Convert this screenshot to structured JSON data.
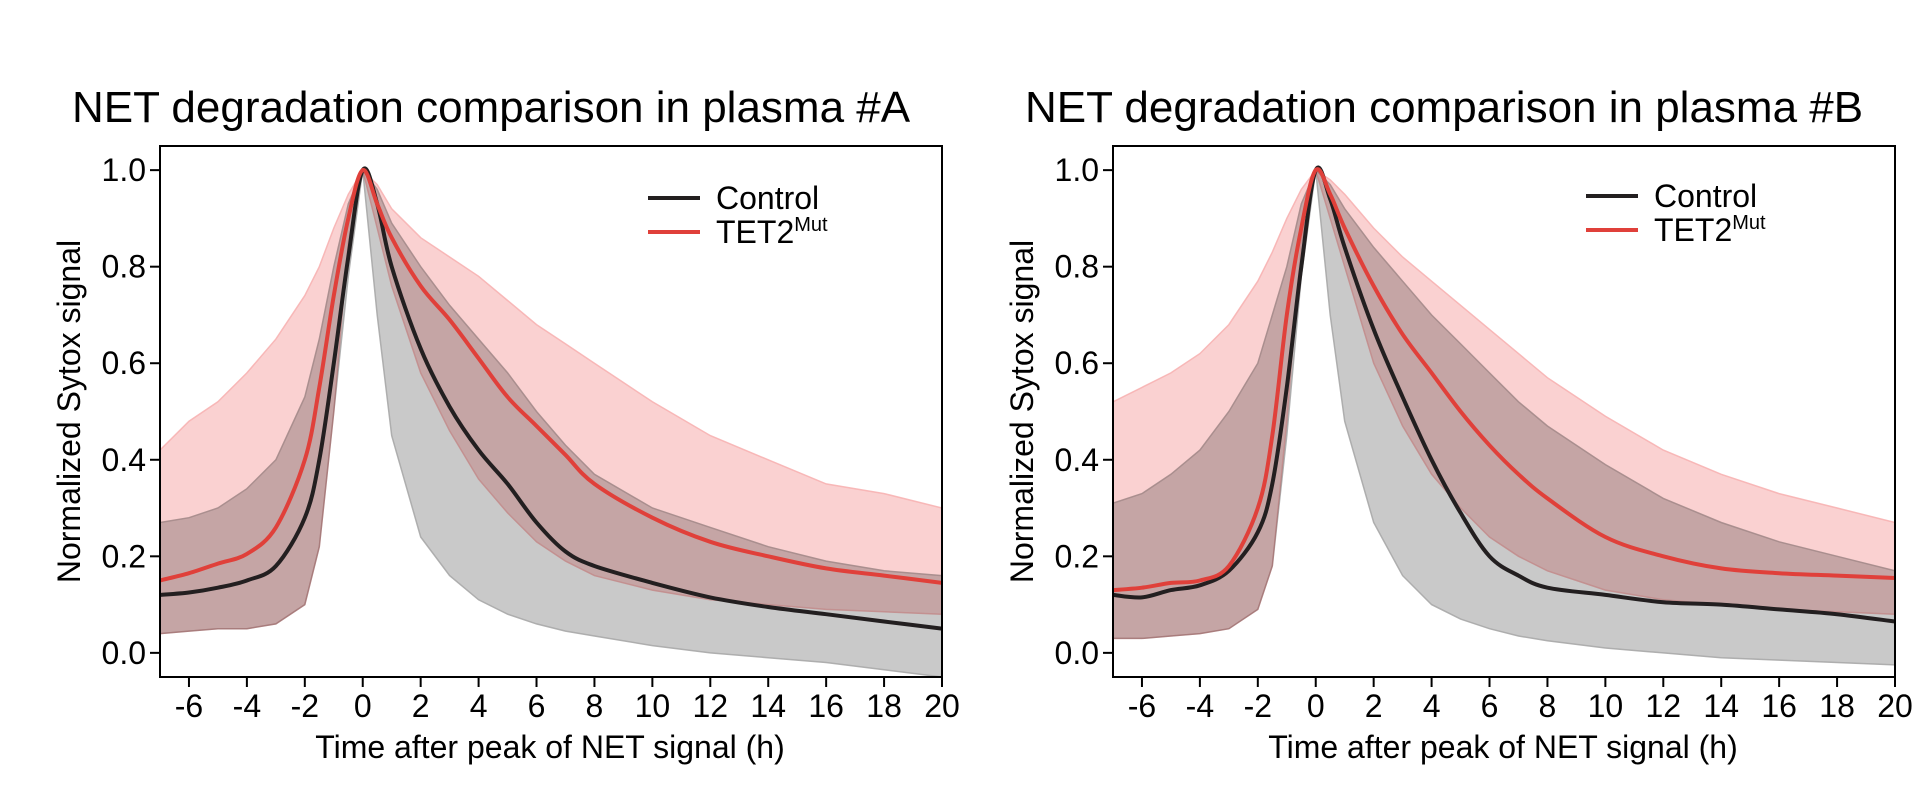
{
  "chart_data": [
    {
      "type": "line",
      "title": "NET degradation comparison in plasma #A",
      "xlabel": "Time after peak of NET signal (h)",
      "ylabel": "Normalized Sytox signal",
      "xlim": [
        -7,
        20
      ],
      "ylim": [
        -0.05,
        1.05
      ],
      "xticks": [
        "-6",
        "-4",
        "-2",
        "0",
        "2",
        "4",
        "6",
        "8",
        "10",
        "12",
        "14",
        "16",
        "18",
        "20"
      ],
      "yticks": [
        "0.0",
        "0.2",
        "0.4",
        "0.6",
        "0.8",
        "1.0"
      ],
      "legend_position": "top-right",
      "x": [
        -7,
        -6,
        -5,
        -4,
        -3,
        -2,
        -1.5,
        -1,
        -0.5,
        0,
        0.5,
        1,
        2,
        3,
        4,
        5,
        6,
        7,
        8,
        10,
        12,
        14,
        16,
        18,
        20
      ],
      "series": [
        {
          "name": "Control",
          "color": "#231f20",
          "band_color": "#a8a8a8",
          "values": [
            0.12,
            0.125,
            0.135,
            0.15,
            0.18,
            0.28,
            0.4,
            0.6,
            0.82,
            1.0,
            0.93,
            0.8,
            0.63,
            0.51,
            0.42,
            0.35,
            0.27,
            0.21,
            0.18,
            0.145,
            0.115,
            0.095,
            0.08,
            0.065,
            0.05
          ],
          "upper": [
            0.27,
            0.28,
            0.3,
            0.34,
            0.4,
            0.53,
            0.65,
            0.8,
            0.93,
            1.0,
            0.96,
            0.89,
            0.8,
            0.72,
            0.65,
            0.58,
            0.5,
            0.43,
            0.37,
            0.3,
            0.26,
            0.22,
            0.19,
            0.17,
            0.16
          ],
          "lower": [
            0.04,
            0.045,
            0.05,
            0.05,
            0.06,
            0.1,
            0.22,
            0.5,
            0.78,
            1.0,
            0.7,
            0.45,
            0.24,
            0.16,
            0.11,
            0.08,
            0.06,
            0.045,
            0.035,
            0.015,
            0.0,
            -0.01,
            -0.02,
            -0.035,
            -0.05
          ]
        },
        {
          "name": "TET2Mut",
          "color": "#e0403a",
          "band_color": "#f7b2b2",
          "values": [
            0.15,
            0.165,
            0.185,
            0.205,
            0.26,
            0.4,
            0.55,
            0.74,
            0.9,
            1.0,
            0.93,
            0.86,
            0.76,
            0.69,
            0.61,
            0.53,
            0.47,
            0.41,
            0.35,
            0.28,
            0.23,
            0.2,
            0.175,
            0.16,
            0.145
          ],
          "upper": [
            0.42,
            0.48,
            0.52,
            0.58,
            0.65,
            0.74,
            0.8,
            0.88,
            0.95,
            1.0,
            0.97,
            0.92,
            0.86,
            0.82,
            0.78,
            0.73,
            0.68,
            0.64,
            0.6,
            0.52,
            0.45,
            0.4,
            0.35,
            0.33,
            0.3
          ],
          "lower": [
            0.04,
            0.045,
            0.05,
            0.05,
            0.06,
            0.1,
            0.22,
            0.5,
            0.85,
            1.0,
            0.88,
            0.76,
            0.58,
            0.46,
            0.36,
            0.29,
            0.23,
            0.19,
            0.16,
            0.13,
            0.11,
            0.1,
            0.09,
            0.085,
            0.08
          ]
        }
      ]
    },
    {
      "type": "line",
      "title": "NET degradation comparison in plasma #B",
      "xlabel": "Time after peak of NET signal (h)",
      "ylabel": "Normalized Sytox signal",
      "xlim": [
        -7,
        20
      ],
      "ylim": [
        -0.05,
        1.05
      ],
      "xticks": [
        "-6",
        "-4",
        "-2",
        "0",
        "2",
        "4",
        "6",
        "8",
        "10",
        "12",
        "14",
        "16",
        "18",
        "20"
      ],
      "yticks": [
        "0.0",
        "0.2",
        "0.4",
        "0.6",
        "0.8",
        "1.0"
      ],
      "legend_position": "top-right",
      "x": [
        -7,
        -6,
        -5,
        -4,
        -3,
        -2,
        -1.5,
        -1,
        -0.5,
        0,
        0.5,
        1,
        2,
        3,
        4,
        5,
        6,
        7,
        8,
        10,
        12,
        14,
        16,
        18,
        20
      ],
      "series": [
        {
          "name": "Control",
          "color": "#231f20",
          "band_color": "#a8a8a8",
          "values": [
            0.12,
            0.115,
            0.13,
            0.14,
            0.17,
            0.25,
            0.35,
            0.55,
            0.8,
            1.0,
            0.94,
            0.84,
            0.67,
            0.53,
            0.4,
            0.29,
            0.2,
            0.16,
            0.135,
            0.12,
            0.105,
            0.1,
            0.09,
            0.08,
            0.065
          ],
          "upper": [
            0.31,
            0.33,
            0.37,
            0.42,
            0.5,
            0.6,
            0.7,
            0.8,
            0.93,
            1.0,
            0.97,
            0.92,
            0.84,
            0.77,
            0.7,
            0.64,
            0.58,
            0.52,
            0.47,
            0.39,
            0.32,
            0.27,
            0.23,
            0.2,
            0.17
          ],
          "lower": [
            0.03,
            0.03,
            0.035,
            0.04,
            0.05,
            0.09,
            0.18,
            0.45,
            0.78,
            1.0,
            0.7,
            0.48,
            0.27,
            0.16,
            0.1,
            0.07,
            0.05,
            0.035,
            0.025,
            0.01,
            0.0,
            -0.01,
            -0.015,
            -0.02,
            -0.025
          ]
        },
        {
          "name": "TET2Mut",
          "color": "#e0403a",
          "band_color": "#f7b2b2",
          "values": [
            0.13,
            0.135,
            0.145,
            0.15,
            0.18,
            0.3,
            0.45,
            0.7,
            0.88,
            1.0,
            0.95,
            0.88,
            0.76,
            0.66,
            0.58,
            0.5,
            0.43,
            0.37,
            0.32,
            0.24,
            0.2,
            0.175,
            0.165,
            0.16,
            0.155
          ],
          "upper": [
            0.52,
            0.55,
            0.58,
            0.62,
            0.68,
            0.77,
            0.83,
            0.9,
            0.96,
            1.0,
            0.98,
            0.95,
            0.88,
            0.82,
            0.77,
            0.72,
            0.67,
            0.62,
            0.57,
            0.49,
            0.42,
            0.37,
            0.33,
            0.3,
            0.27
          ],
          "lower": [
            0.03,
            0.03,
            0.035,
            0.04,
            0.05,
            0.09,
            0.18,
            0.48,
            0.85,
            1.0,
            0.9,
            0.8,
            0.6,
            0.47,
            0.37,
            0.3,
            0.24,
            0.2,
            0.17,
            0.13,
            0.11,
            0.1,
            0.09,
            0.085,
            0.08
          ]
        }
      ]
    }
  ],
  "legend": {
    "control_label": "Control",
    "tet2_label": "TET2",
    "tet2_superscript": "Mut"
  }
}
